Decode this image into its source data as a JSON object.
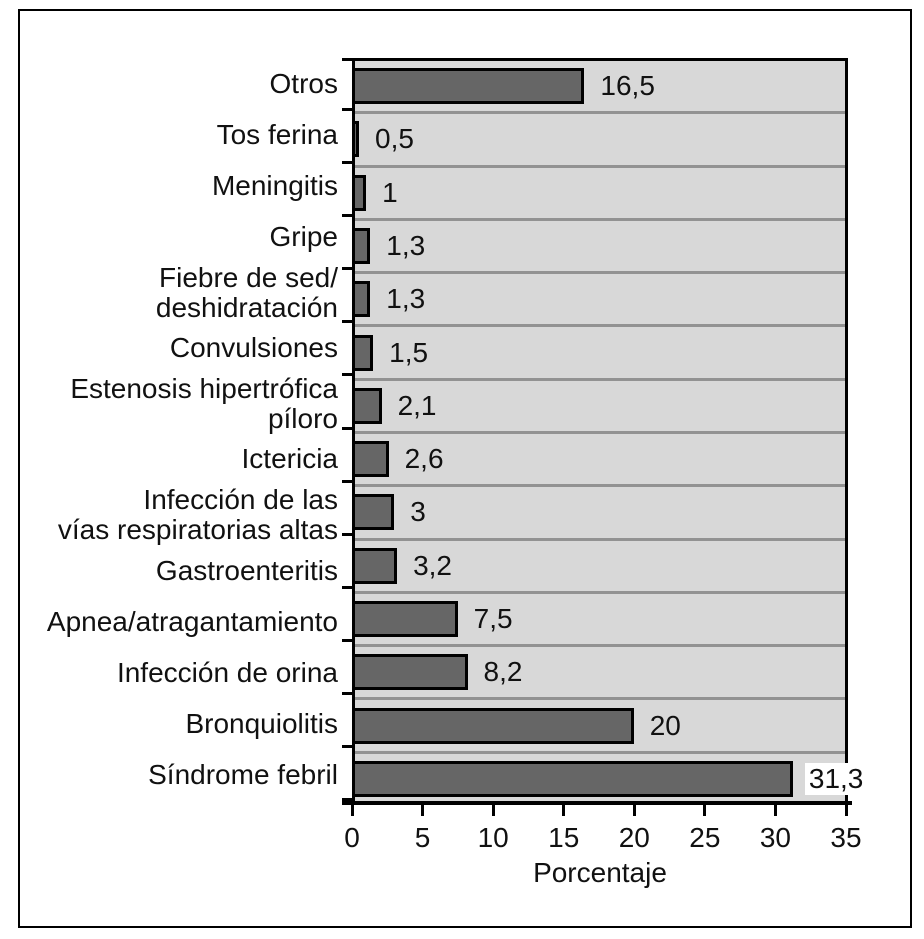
{
  "chart_data": {
    "type": "bar",
    "orientation": "horizontal",
    "title": null,
    "legend": null,
    "xlabel": "Porcentaje",
    "xlim": [
      0,
      35
    ],
    "xticks": [
      0,
      5,
      10,
      15,
      20,
      25,
      30,
      35
    ],
    "xtick_labels": [
      "0",
      "5",
      "10",
      "15",
      "20",
      "25",
      "30",
      "35"
    ],
    "grid": "horizontal row separators between categories",
    "categories": [
      "Otros",
      "Tos ferina",
      "Meningitis",
      "Gripe",
      "Fiebre de sed/\ndeshidratación",
      "Convulsiones",
      "Estenosis hipertrófica\npíloro",
      "Ictericia",
      "Infección de las\nvías respiratorias altas",
      "Gastroenteritis",
      "Apnea/atragantamiento",
      "Infección de orina",
      "Bronquiolitis",
      "Síndrome febril"
    ],
    "values": [
      16.5,
      0.5,
      1,
      1.3,
      1.3,
      1.5,
      2.1,
      2.6,
      3,
      3.2,
      7.5,
      8.2,
      20,
      31.3
    ],
    "value_labels": [
      "16,5",
      "0,5",
      "1",
      "1,3",
      "1,3",
      "1,5",
      "2,1",
      "2,6",
      "3",
      "3,2",
      "7,5",
      "8,2",
      "20",
      "31,3"
    ],
    "colors": {
      "bar_fill": "#666666",
      "bar_border": "#000000",
      "plot_background": "#d8d8d8",
      "gridline": "#929292",
      "axis": "#000000",
      "frame_border": "#000000",
      "page_background": "#ffffff",
      "text": "#111111"
    }
  }
}
